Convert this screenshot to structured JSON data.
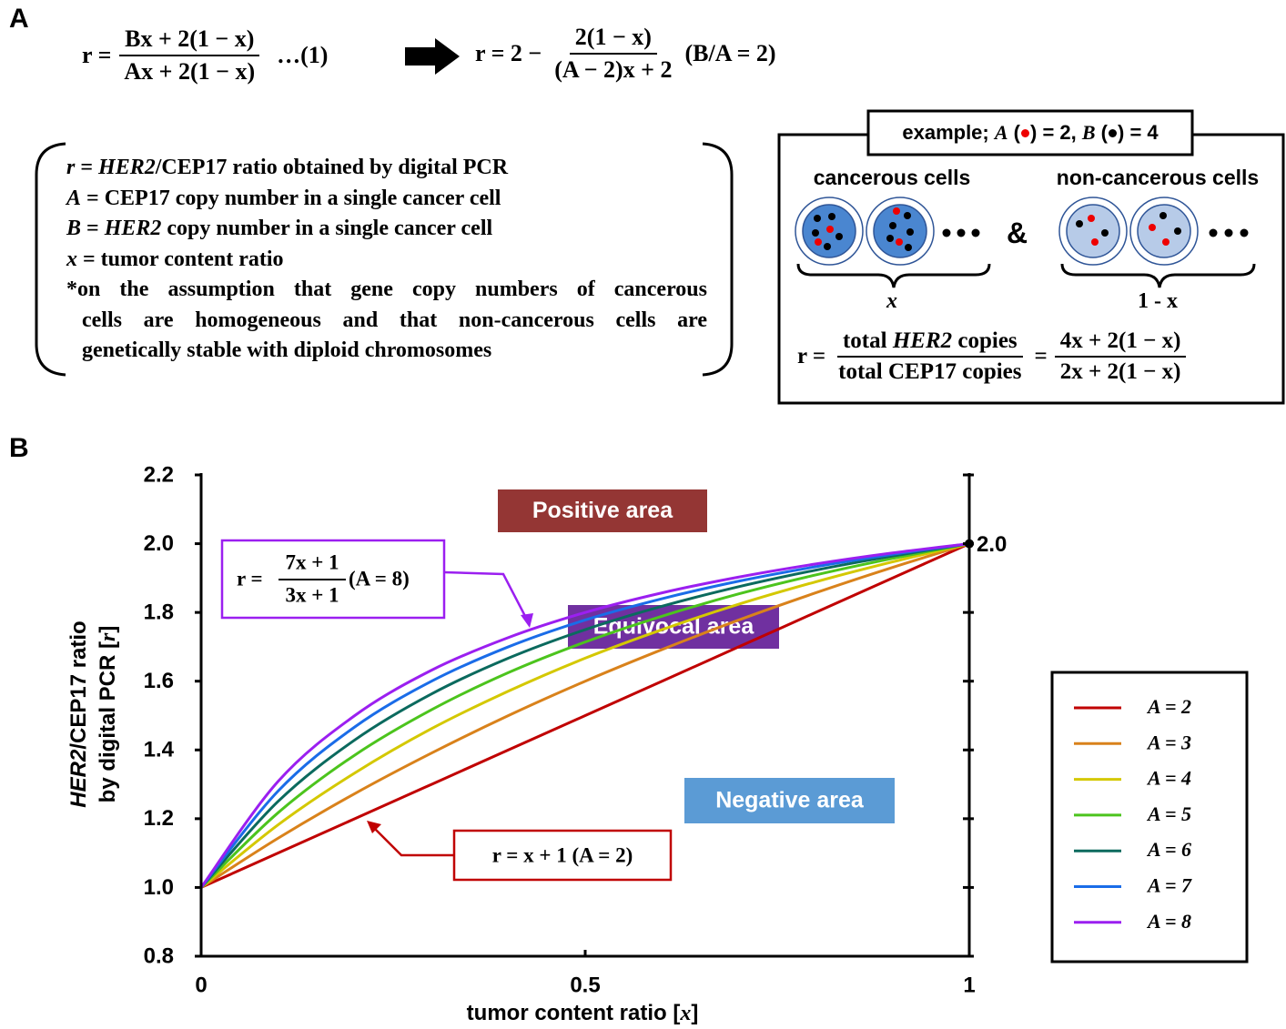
{
  "panel_labels": [
    "A",
    "B"
  ],
  "equations": {
    "eq1": {
      "lhs": "r =",
      "numerator": "Bx + 2(1 − x)",
      "denominator": "Ax + 2(1 − x)",
      "tag": "…(1)"
    },
    "eq2": {
      "lhs": "r = 2 −",
      "numerator": "2(1 − x)",
      "denominator": "(A − 2)x + 2",
      "condition": "(B/A = 2)"
    }
  },
  "definitions": {
    "lines": [
      [
        "r",
        " = ",
        "HER2",
        "/CEP17 ratio obtained by digital PCR"
      ],
      [
        "A",
        " = CEP17 copy number in a single cancer cell"
      ],
      [
        "B",
        " = ",
        "HER2",
        " copy number in a single cancer cell"
      ],
      [
        "x",
        " = tumor content ratio"
      ]
    ],
    "note": [
      "*on the assumption that gene copy numbers of cancerous",
      "cells are homogeneous and that non-cancerous cells are",
      "genetically stable with diploid chromosomes"
    ]
  },
  "example": {
    "title": [
      "example; ",
      "A",
      " (",
      ") = 2, ",
      "B",
      " (",
      ") = 4"
    ],
    "cancerous_label": "cancerous cells",
    "non_cancerous_label": "non-cancerous cells",
    "connector": "&",
    "cancerous_fraction": "x",
    "non_cancerous_fraction": "1 - x",
    "formula": {
      "lhs": "r =",
      "numerator": [
        "total ",
        "HER2",
        " copies"
      ],
      "denominator": "total CEP17 copies",
      "equals": "=",
      "numerator2": "4x + 2(1 − x)",
      "denominator2": "2x + 2(1 − x)"
    }
  },
  "chart_data": {
    "type": "line",
    "xlabel": [
      "tumor content ratio [",
      "x",
      "]"
    ],
    "ylabel": {
      "line1": [
        "HER2",
        "/CEP17 ratio"
      ],
      "line2": [
        "by digital PCR [",
        "r",
        "]"
      ]
    },
    "x": [
      0,
      0.1,
      0.2,
      0.3,
      0.4,
      0.5,
      0.6,
      0.7,
      0.8,
      0.9,
      1
    ],
    "series": [
      {
        "name": "A = 2",
        "color": "#c00000",
        "values": [
          1,
          1.1,
          1.2,
          1.3,
          1.4,
          1.5,
          1.6,
          1.7,
          1.8,
          1.9,
          2
        ]
      },
      {
        "name": "A = 3",
        "color": "#d9821b",
        "values": [
          1,
          1.143,
          1.273,
          1.391,
          1.5,
          1.6,
          1.692,
          1.778,
          1.857,
          1.931,
          2
        ]
      },
      {
        "name": "A = 4",
        "color": "#d4c800",
        "values": [
          1,
          1.182,
          1.333,
          1.462,
          1.571,
          1.667,
          1.75,
          1.824,
          1.889,
          1.947,
          2
        ]
      },
      {
        "name": "A = 5",
        "color": "#4cc41d",
        "values": [
          1,
          1.217,
          1.385,
          1.517,
          1.625,
          1.714,
          1.789,
          1.854,
          1.909,
          1.957,
          2
        ]
      },
      {
        "name": "A = 6",
        "color": "#0b6a5e",
        "values": [
          1,
          1.25,
          1.429,
          1.563,
          1.667,
          1.75,
          1.818,
          1.875,
          1.923,
          1.964,
          2
        ]
      },
      {
        "name": "A = 7",
        "color": "#1a6ce8",
        "values": [
          1,
          1.28,
          1.467,
          1.6,
          1.7,
          1.778,
          1.84,
          1.891,
          1.933,
          1.969,
          2
        ]
      },
      {
        "name": "A = 8",
        "color": "#9b1ff0",
        "values": [
          1,
          1.308,
          1.5,
          1.632,
          1.727,
          1.8,
          1.857,
          1.903,
          1.941,
          1.973,
          2
        ]
      }
    ],
    "xlim": [
      0,
      1
    ],
    "xticks": [
      0,
      0.5,
      1
    ],
    "ylim": [
      0.8,
      2.2
    ],
    "yticks": [
      0.8,
      {
        "value": 1,
        "label": "1.0"
      },
      1.2,
      1.4,
      1.6,
      1.8,
      {
        "value": 2,
        "label": "2.0"
      },
      2.2
    ],
    "right_axis": true,
    "legend": "right",
    "end_point": {
      "x": 1,
      "y": 2,
      "label": "2.0"
    },
    "areas": [
      {
        "text": "Positive area",
        "color": "#943634"
      },
      {
        "text": "Equivocal area",
        "color": "#7030a0"
      },
      {
        "text": "Negative area",
        "color": "#5b9bd5"
      }
    ],
    "formula_a8": {
      "lhs": "r =",
      "numerator": "7x + 1",
      "denominator": "3x + 1",
      "condition": "(A = 8)"
    },
    "formula_a2": "r = x + 1 (A = 2)"
  }
}
